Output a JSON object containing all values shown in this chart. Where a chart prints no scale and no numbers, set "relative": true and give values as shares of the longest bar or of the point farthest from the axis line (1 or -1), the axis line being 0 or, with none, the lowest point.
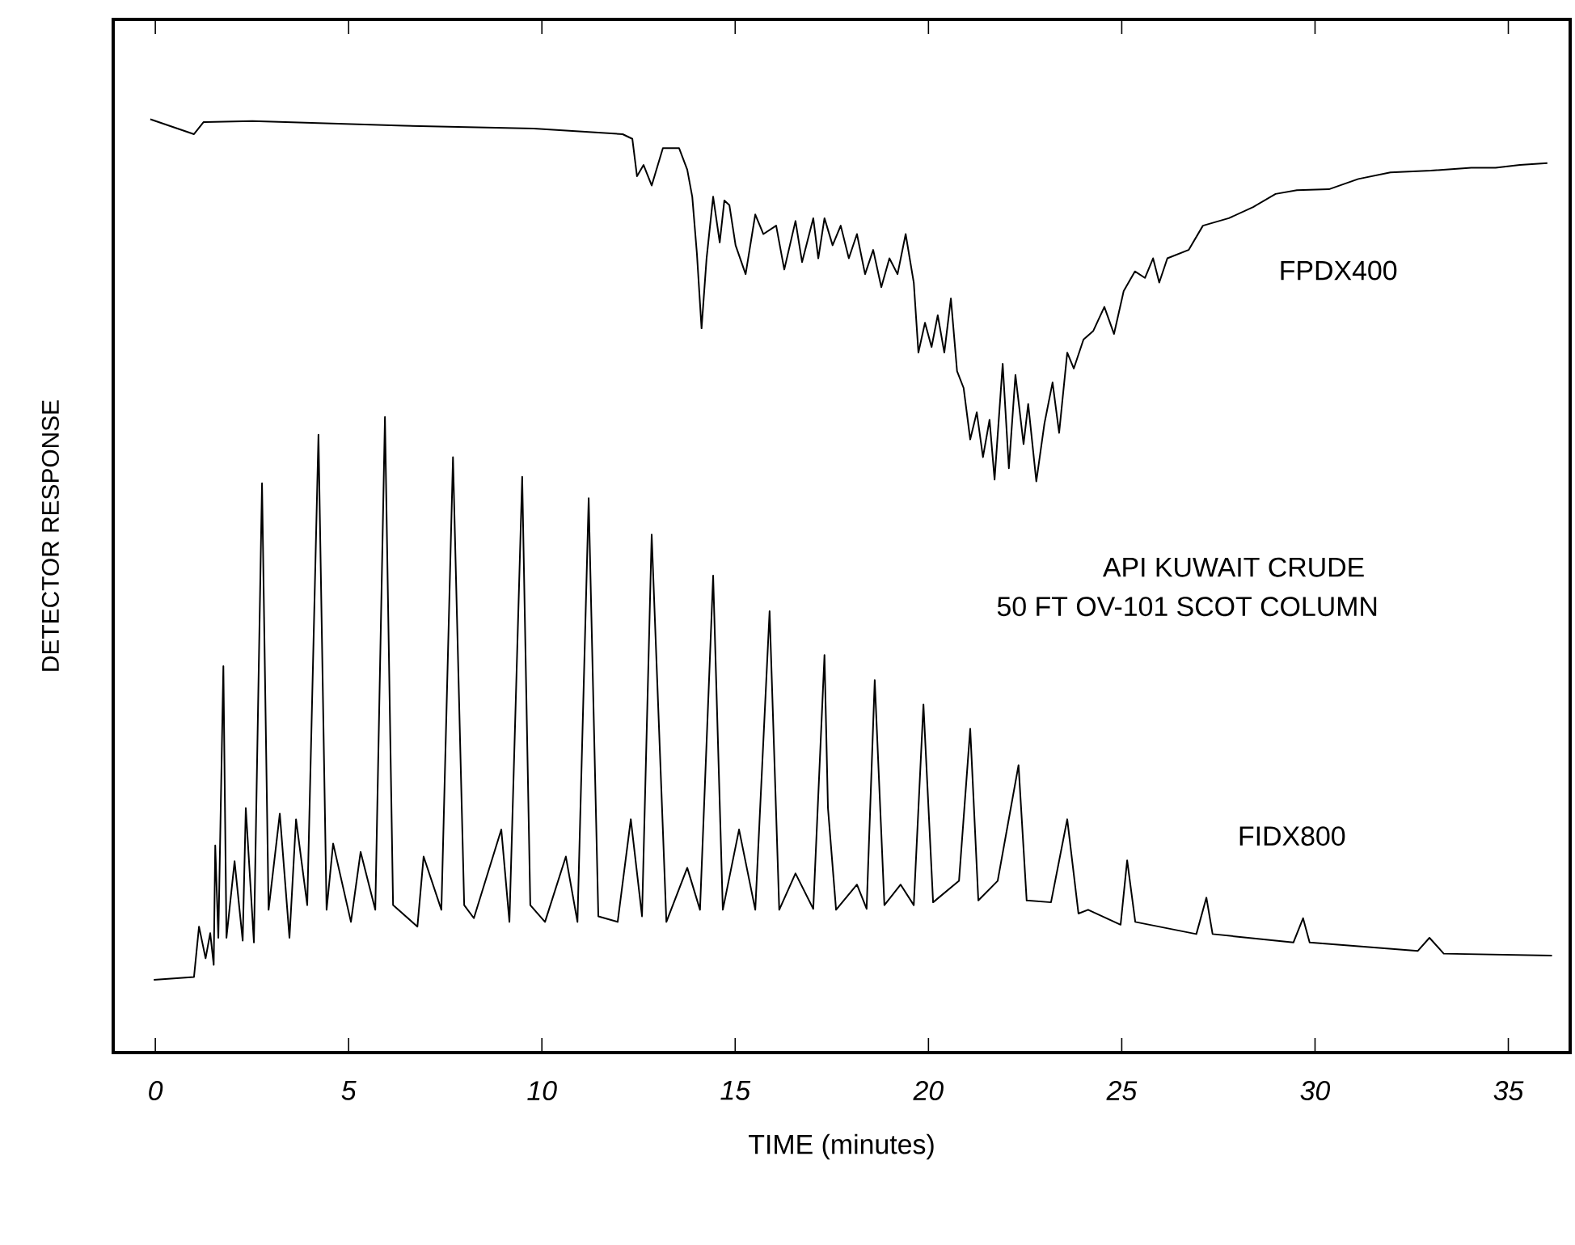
{
  "chart_data": {
    "type": "line",
    "relative": true,
    "xlabel": "TIME (minutes)",
    "ylabel": "DETECTOR RESPONSE",
    "annotations": [
      "API KUWAIT CRUDE",
      "50 FT  OV-101 SCOT COLUMN"
    ],
    "xlim": [
      -1.09,
      36.6
    ],
    "xticks": [
      0,
      5,
      10,
      15,
      20,
      25,
      30,
      35
    ],
    "marker": "none",
    "line_style": "solid",
    "series": [
      {
        "name": "FPDX400",
        "color": "#000000",
        "x": [
          -0.13,
          1.0,
          1.25,
          2.51,
          6.44,
          9.79,
          12.09,
          12.34,
          12.46,
          12.63,
          12.84,
          13.13,
          13.55,
          13.76,
          13.89,
          14.01,
          14.13,
          14.26,
          14.43,
          14.6,
          14.72,
          14.85,
          15.01,
          15.27,
          15.52,
          15.73,
          16.06,
          16.27,
          16.56,
          16.73,
          17.02,
          17.15,
          17.31,
          17.52,
          17.73,
          17.94,
          18.15,
          18.36,
          18.57,
          18.78,
          18.99,
          19.2,
          19.41,
          19.62,
          19.74,
          19.91,
          20.08,
          20.24,
          20.41,
          20.58,
          20.74,
          20.91,
          21.08,
          21.25,
          21.41,
          21.58,
          21.71,
          21.92,
          22.08,
          22.25,
          22.46,
          22.58,
          22.79,
          23.0,
          23.21,
          23.38,
          23.59,
          23.76,
          24.01,
          24.26,
          24.55,
          24.8,
          25.05,
          25.34,
          25.6,
          25.81,
          25.97,
          26.18,
          26.73,
          27.1,
          27.77,
          28.4,
          28.98,
          29.53,
          30.36,
          31.12,
          31.95,
          33.0,
          34.04,
          34.67,
          35.3,
          36.01
        ],
        "values": [
          1,
          0.984,
          0.997,
          0.998,
          0.993,
          0.99,
          0.984,
          0.979,
          0.939,
          0.951,
          0.929,
          0.969,
          0.969,
          0.946,
          0.917,
          0.856,
          0.776,
          0.851,
          0.917,
          0.868,
          0.913,
          0.908,
          0.865,
          0.834,
          0.898,
          0.877,
          0.886,
          0.839,
          0.891,
          0.847,
          0.894,
          0.851,
          0.894,
          0.865,
          0.886,
          0.851,
          0.877,
          0.834,
          0.86,
          0.82,
          0.851,
          0.834,
          0.877,
          0.825,
          0.75,
          0.782,
          0.756,
          0.79,
          0.75,
          0.808,
          0.73,
          0.712,
          0.657,
          0.686,
          0.638,
          0.678,
          0.614,
          0.738,
          0.626,
          0.726,
          0.652,
          0.695,
          0.612,
          0.674,
          0.718,
          0.664,
          0.75,
          0.733,
          0.764,
          0.773,
          0.799,
          0.77,
          0.816,
          0.837,
          0.83,
          0.851,
          0.825,
          0.851,
          0.86,
          0.886,
          0.894,
          0.906,
          0.92,
          0.924,
          0.925,
          0.936,
          0.943,
          0.945,
          0.948,
          0.948,
          0.951,
          0.953
        ]
      },
      {
        "name": "FIDX800",
        "color": "#000000",
        "x": [
          -0.04,
          1.0,
          1.13,
          1.3,
          1.42,
          1.51,
          1.55,
          1.63,
          1.76,
          1.84,
          2.05,
          2.26,
          2.34,
          2.55,
          2.76,
          2.93,
          3.22,
          3.47,
          3.64,
          3.93,
          4.22,
          4.43,
          4.6,
          5.06,
          5.31,
          5.69,
          5.94,
          6.15,
          6.78,
          6.94,
          7.4,
          7.7,
          7.99,
          8.24,
          8.95,
          9.16,
          9.49,
          9.7,
          10.08,
          10.62,
          10.92,
          11.21,
          11.46,
          11.96,
          12.3,
          12.59,
          12.84,
          13.22,
          13.76,
          14.09,
          14.43,
          14.68,
          15.1,
          15.52,
          15.89,
          16.14,
          16.56,
          17.02,
          17.31,
          17.4,
          17.61,
          18.15,
          18.4,
          18.61,
          18.86,
          19.28,
          19.62,
          19.87,
          20.12,
          20.79,
          21.08,
          21.29,
          21.79,
          22.33,
          22.54,
          23.17,
          23.59,
          23.88,
          24.13,
          24.97,
          25.14,
          25.35,
          26.93,
          27.19,
          27.35,
          29.44,
          29.69,
          29.86,
          32.66,
          32.96,
          33.33,
          36.13
        ],
        "values": [
          0.078,
          0.081,
          0.135,
          0.101,
          0.128,
          0.094,
          0.222,
          0.123,
          0.414,
          0.123,
          0.205,
          0.12,
          0.262,
          0.118,
          0.61,
          0.153,
          0.256,
          0.123,
          0.25,
          0.158,
          0.662,
          0.153,
          0.224,
          0.14,
          0.215,
          0.153,
          0.681,
          0.158,
          0.135,
          0.21,
          0.153,
          0.638,
          0.158,
          0.144,
          0.239,
          0.14,
          0.617,
          0.158,
          0.14,
          0.21,
          0.14,
          0.594,
          0.146,
          0.14,
          0.25,
          0.146,
          0.555,
          0.14,
          0.198,
          0.153,
          0.511,
          0.153,
          0.239,
          0.153,
          0.473,
          0.153,
          0.192,
          0.154,
          0.426,
          0.262,
          0.153,
          0.18,
          0.154,
          0.399,
          0.158,
          0.18,
          0.158,
          0.373,
          0.161,
          0.184,
          0.347,
          0.163,
          0.184,
          0.308,
          0.163,
          0.161,
          0.25,
          0.149,
          0.153,
          0.137,
          0.206,
          0.14,
          0.127,
          0.166,
          0.127,
          0.118,
          0.144,
          0.118,
          0.109,
          0.123,
          0.106,
          0.104
        ]
      }
    ]
  }
}
